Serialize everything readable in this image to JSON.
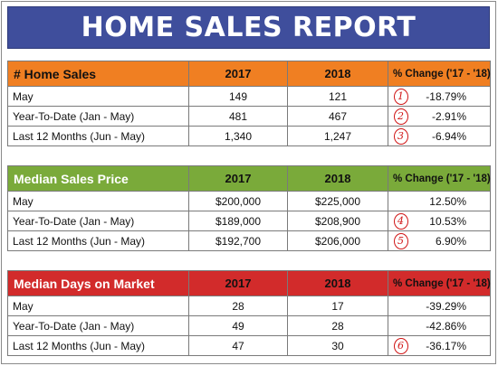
{
  "title": "HOME SALES REPORT",
  "sections": [
    {
      "header": {
        "label": "# Home Sales",
        "col2017": "2017",
        "col2018": "2018",
        "change": "% Change ('17 - '18)"
      },
      "rows": [
        {
          "label": "May",
          "v2017": "149",
          "v2018": "121",
          "mark": "1",
          "change": "-18.79%"
        },
        {
          "label": "Year-To-Date (Jan - May)",
          "v2017": "481",
          "v2018": "467",
          "mark": "2",
          "change": "-2.91%"
        },
        {
          "label": "Last 12 Months (Jun - May)",
          "v2017": "1,340",
          "v2018": "1,247",
          "mark": "3",
          "change": "-6.94%"
        }
      ]
    },
    {
      "header": {
        "label": "Median Sales Price",
        "col2017": "2017",
        "col2018": "2018",
        "change": "% Change ('17 - '18)"
      },
      "rows": [
        {
          "label": "May",
          "v2017": "$200,000",
          "v2018": "$225,000",
          "mark": "",
          "change": "12.50%"
        },
        {
          "label": "Year-To-Date (Jan - May)",
          "v2017": "$189,000",
          "v2018": "$208,900",
          "mark": "4",
          "change": "10.53%"
        },
        {
          "label": "Last 12 Months (Jun - May)",
          "v2017": "$192,700",
          "v2018": "$206,000",
          "mark": "5",
          "change": "6.90%"
        }
      ]
    },
    {
      "header": {
        "label": "Median Days on Market",
        "col2017": "2017",
        "col2018": "2018",
        "change": "% Change ('17 - '18)"
      },
      "rows": [
        {
          "label": "May",
          "v2017": "28",
          "v2018": "17",
          "mark": "",
          "change": "-39.29%"
        },
        {
          "label": "Year-To-Date (Jan - May)",
          "v2017": "49",
          "v2018": "28",
          "mark": "",
          "change": "-42.86%"
        },
        {
          "label": "Last 12 Months (Jun - May)",
          "v2017": "47",
          "v2018": "30",
          "mark": "6",
          "change": "-36.17%"
        }
      ]
    }
  ],
  "colors": {
    "banner": "#3f4e9c",
    "home_sales_header": "#f07f22",
    "median_price_header": "#7aaa3a",
    "days_on_market_header": "#d22b2b",
    "annotation_marks": "#d01515"
  }
}
